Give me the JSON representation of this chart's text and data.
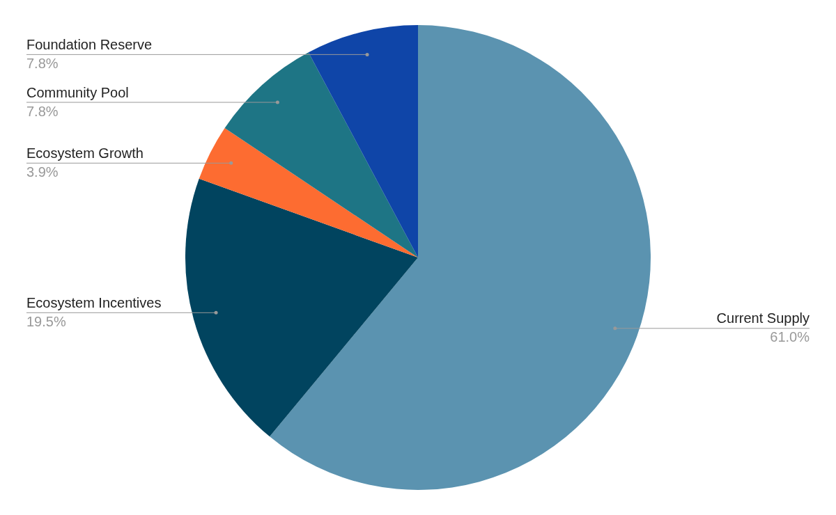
{
  "chart_data": {
    "type": "pie",
    "legend": false,
    "categories": [
      "Current Supply",
      "Ecosystem Incentives",
      "Ecosystem Growth",
      "Community Pool",
      "Foundation Reserve"
    ],
    "values": [
      61.0,
      19.5,
      3.9,
      7.8,
      7.8
    ],
    "value_labels": [
      "61.0%",
      "19.5%",
      "3.9%",
      "7.8%",
      "7.8%"
    ],
    "colors": [
      "#5b93b0",
      "#01445f",
      "#fd6c31",
      "#1e7585",
      "#0f45a8"
    ]
  }
}
